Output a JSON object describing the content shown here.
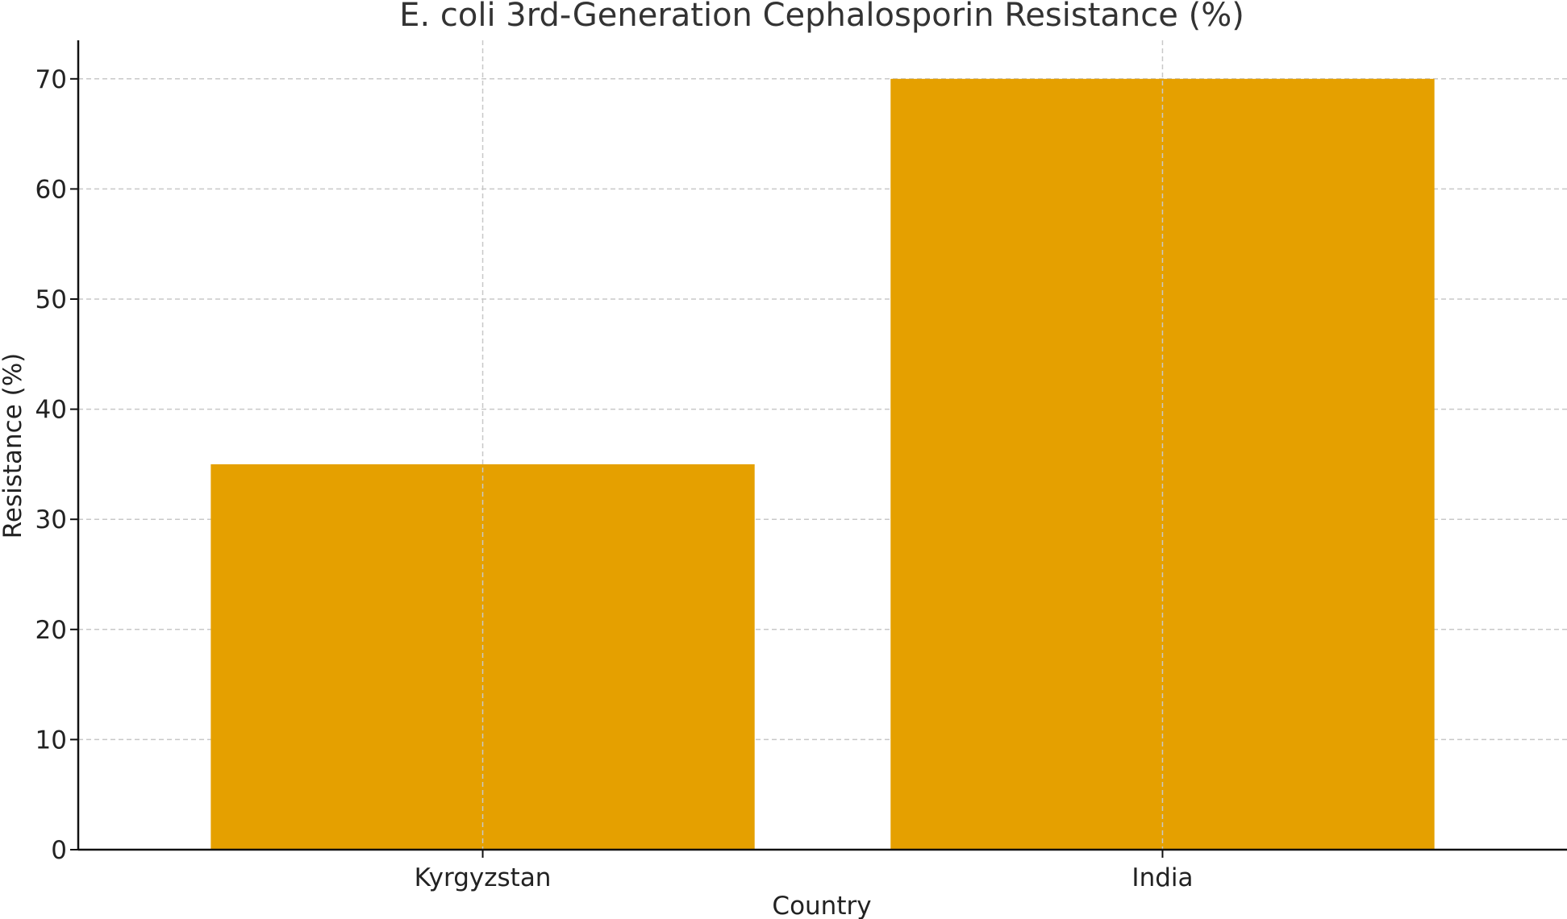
{
  "chart_data": {
    "type": "bar",
    "title": "E. coli 3rd-Generation Cephalosporin Resistance (%)",
    "xlabel": "Country",
    "ylabel": "Resistance (%)",
    "categories": [
      "Kyrgyzstan",
      "India"
    ],
    "values": [
      35,
      70
    ],
    "ylim": [
      0,
      73.5
    ],
    "yticks": [
      0,
      10,
      20,
      30,
      40,
      50,
      60,
      70
    ],
    "grid": true,
    "bar_color": "#E5A000",
    "grid_color": "#C8C8C8"
  }
}
